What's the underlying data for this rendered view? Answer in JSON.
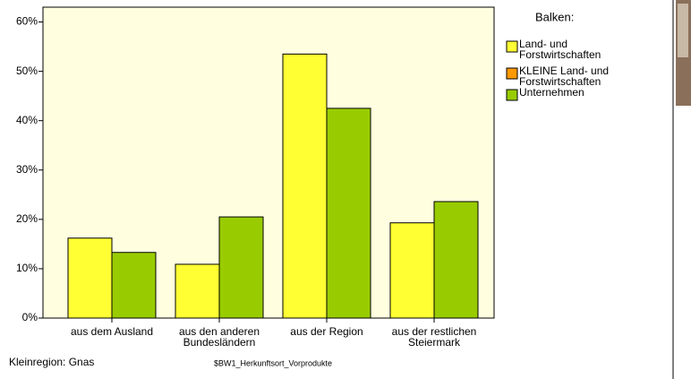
{
  "chart_data": {
    "type": "bar",
    "categories": [
      "aus dem Ausland",
      "aus den anderen\nBundesländern",
      "aus der Region",
      "aus der restlichen\nSteiermark"
    ],
    "x_label": "$BW1_Herkunftsort_Vorprodukte",
    "legend_title": "Balken:",
    "footnote": "Kleinregion: Gnas",
    "series": [
      {
        "name": "Land- und\nForstwirtschaften",
        "color": "#ffff33",
        "values": [
          16.2,
          10.9,
          53.5,
          19.3
        ]
      },
      {
        "name": "KLEINE Land- und\nForstwirtschaften",
        "color": "#ff9900",
        "values": [
          null,
          null,
          null,
          null
        ]
      },
      {
        "name": "Unternehmen",
        "color": "#99cc00",
        "values": [
          13.3,
          20.5,
          42.5,
          23.6
        ]
      }
    ],
    "ylim": [
      0,
      63
    ],
    "yticks": [
      {
        "value": 0,
        "label": "0%"
      },
      {
        "value": 10,
        "label": "10%"
      },
      {
        "value": 20,
        "label": "20%"
      },
      {
        "value": 30,
        "label": "30%"
      },
      {
        "value": 40,
        "label": "40%"
      },
      {
        "value": 50,
        "label": "50%"
      },
      {
        "value": 60,
        "label": "60%"
      }
    ]
  }
}
